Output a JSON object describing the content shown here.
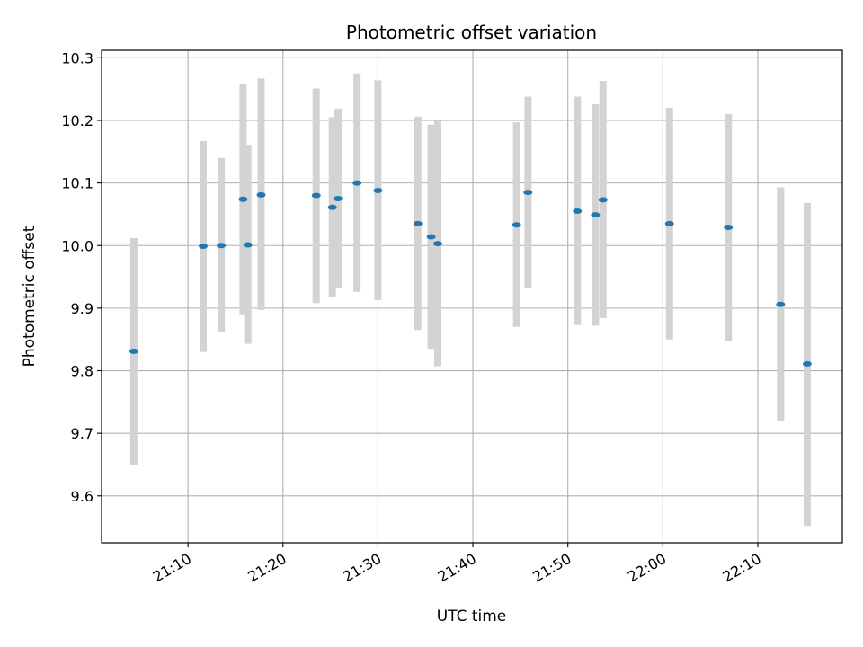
{
  "chart_data": {
    "type": "scatter",
    "title": "Photometric offset variation",
    "xlabel": "UTC time",
    "ylabel": "Photometric offset",
    "x_ticks": [
      "21:10",
      "21:20",
      "21:30",
      "21:40",
      "21:50",
      "22:00",
      "22:10"
    ],
    "x_tick_minutes": [
      1270,
      1280,
      1290,
      1300,
      1310,
      1320,
      1330
    ],
    "y_ticks": [
      9.6,
      9.7,
      9.8,
      9.9,
      10.0,
      10.1,
      10.2,
      10.3
    ],
    "xlim_minutes": [
      1260.9,
      1338.9
    ],
    "ylim": [
      9.525,
      10.312
    ],
    "grid": true,
    "colors": {
      "point": "#1f77b4",
      "errorbar": "#d3d3d3",
      "grid": "#b0b0b0"
    },
    "points": [
      {
        "t": "21:04.3",
        "x": 1264.3,
        "y": 9.831,
        "lo": 9.65,
        "hi": 10.012
      },
      {
        "t": "21:11.6",
        "x": 1271.6,
        "y": 9.999,
        "lo": 9.83,
        "hi": 10.167
      },
      {
        "t": "21:13.5",
        "x": 1273.5,
        "y": 10.0,
        "lo": 9.862,
        "hi": 10.14
      },
      {
        "t": "21:15.8",
        "x": 1275.8,
        "y": 10.074,
        "lo": 9.89,
        "hi": 10.258
      },
      {
        "t": "21:16.3",
        "x": 1276.3,
        "y": 10.001,
        "lo": 9.843,
        "hi": 10.161
      },
      {
        "t": "21:17.7",
        "x": 1277.7,
        "y": 10.081,
        "lo": 9.897,
        "hi": 10.267
      },
      {
        "t": "21:23.5",
        "x": 1283.5,
        "y": 10.08,
        "lo": 9.908,
        "hi": 10.251
      },
      {
        "t": "21:25.2",
        "x": 1285.2,
        "y": 10.061,
        "lo": 9.918,
        "hi": 10.205
      },
      {
        "t": "21:25.8",
        "x": 1285.8,
        "y": 10.075,
        "lo": 9.933,
        "hi": 10.219
      },
      {
        "t": "21:27.8",
        "x": 1287.8,
        "y": 10.1,
        "lo": 9.926,
        "hi": 10.275
      },
      {
        "t": "21:30.0",
        "x": 1290.0,
        "y": 10.088,
        "lo": 9.913,
        "hi": 10.264
      },
      {
        "t": "21:34.2",
        "x": 1294.2,
        "y": 10.035,
        "lo": 9.865,
        "hi": 10.206
      },
      {
        "t": "21:35.6",
        "x": 1295.6,
        "y": 10.014,
        "lo": 9.835,
        "hi": 10.193
      },
      {
        "t": "21:36.3",
        "x": 1296.3,
        "y": 10.003,
        "lo": 9.807,
        "hi": 10.199
      },
      {
        "t": "21:44.6",
        "x": 1304.6,
        "y": 10.033,
        "lo": 9.87,
        "hi": 10.197
      },
      {
        "t": "21:45.8",
        "x": 1305.8,
        "y": 10.085,
        "lo": 9.932,
        "hi": 10.238
      },
      {
        "t": "21:51.0",
        "x": 1311.0,
        "y": 10.055,
        "lo": 9.873,
        "hi": 10.238
      },
      {
        "t": "21:52.9",
        "x": 1312.9,
        "y": 10.049,
        "lo": 9.872,
        "hi": 10.226
      },
      {
        "t": "21:53.7",
        "x": 1313.7,
        "y": 10.073,
        "lo": 9.884,
        "hi": 10.263
      },
      {
        "t": "22:00.7",
        "x": 1320.7,
        "y": 10.035,
        "lo": 9.85,
        "hi": 10.22
      },
      {
        "t": "22:06.9",
        "x": 1326.9,
        "y": 10.029,
        "lo": 9.847,
        "hi": 10.21
      },
      {
        "t": "22:12.4",
        "x": 1332.4,
        "y": 9.906,
        "lo": 9.719,
        "hi": 10.093
      },
      {
        "t": "22:15.2",
        "x": 1335.2,
        "y": 9.811,
        "lo": 9.552,
        "hi": 10.068
      }
    ]
  }
}
